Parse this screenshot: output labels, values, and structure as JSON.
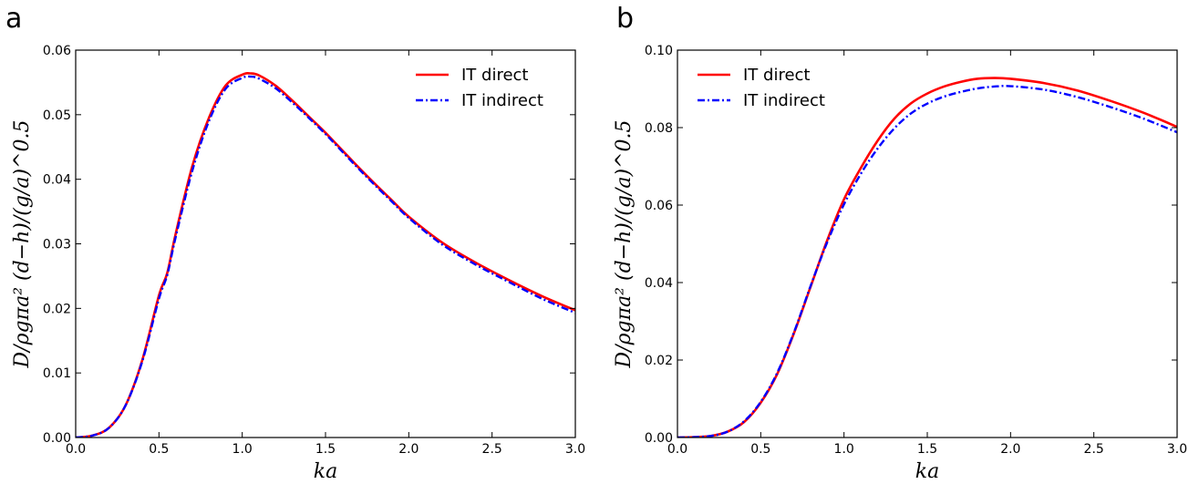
{
  "figure": {
    "panels": [
      "a",
      "b"
    ]
  },
  "chart_data": [
    {
      "panel": "a",
      "type": "line",
      "xlabel": "ka",
      "ylabel": "D/ρgπa² (d−h)/(g/a)^0.5",
      "xlim": [
        0.0,
        3.0
      ],
      "ylim": [
        0.0,
        0.06
      ],
      "xticks": [
        "0.0",
        "0.5",
        "1.0",
        "1.5",
        "2.0",
        "2.5",
        "3.0"
      ],
      "yticks": [
        "0.00",
        "0.01",
        "0.02",
        "0.03",
        "0.04",
        "0.05",
        "0.06"
      ],
      "xtick_values": [
        0.0,
        0.5,
        1.0,
        1.5,
        2.0,
        2.5,
        3.0
      ],
      "ytick_values": [
        0.0,
        0.01,
        0.02,
        0.03,
        0.04,
        0.05,
        0.06
      ],
      "grid": false,
      "legend": "top-right",
      "series": [
        {
          "name": "IT direct",
          "color": "#ff0000",
          "style": "solid",
          "x": [
            0.0,
            0.1,
            0.2,
            0.3,
            0.4,
            0.5,
            0.55,
            0.6,
            0.7,
            0.8,
            0.9,
            1.0,
            1.05,
            1.1,
            1.2,
            1.3,
            1.4,
            1.5,
            1.6,
            1.7,
            1.8,
            1.9,
            2.0,
            2.2,
            2.4,
            2.6,
            2.8,
            3.0
          ],
          "y": [
            0.0,
            0.0003,
            0.0015,
            0.005,
            0.012,
            0.022,
            0.0255,
            0.0315,
            0.042,
            0.0495,
            0.0545,
            0.0562,
            0.0564,
            0.0561,
            0.0545,
            0.0522,
            0.0497,
            0.0472,
            0.0445,
            0.0418,
            0.0392,
            0.0367,
            0.0342,
            0.0302,
            0.0271,
            0.0244,
            0.0219,
            0.0197
          ]
        },
        {
          "name": "IT indirect",
          "color": "#0000ff",
          "style": "dashdot",
          "x": [
            0.0,
            0.1,
            0.2,
            0.3,
            0.4,
            0.5,
            0.55,
            0.6,
            0.7,
            0.8,
            0.9,
            1.0,
            1.05,
            1.1,
            1.2,
            1.3,
            1.4,
            1.5,
            1.6,
            1.7,
            1.8,
            1.9,
            2.0,
            2.2,
            2.4,
            2.6,
            2.8,
            3.0
          ],
          "y": [
            0.0,
            0.0003,
            0.0015,
            0.005,
            0.0118,
            0.0215,
            0.0252,
            0.031,
            0.0413,
            0.049,
            0.054,
            0.0557,
            0.0559,
            0.0556,
            0.0541,
            0.0519,
            0.0495,
            0.047,
            0.0443,
            0.0416,
            0.039,
            0.0365,
            0.034,
            0.0299,
            0.0268,
            0.0241,
            0.0215,
            0.0193
          ]
        }
      ]
    },
    {
      "panel": "b",
      "type": "line",
      "xlabel": "ka",
      "ylabel": "D/ρgπa² (d−h)/(g/a)^0.5",
      "xlim": [
        0.0,
        3.0
      ],
      "ylim": [
        0.0,
        0.1
      ],
      "xticks": [
        "0.0",
        "0.5",
        "1.0",
        "1.5",
        "2.0",
        "2.5",
        "3.0"
      ],
      "yticks": [
        "0.00",
        "0.02",
        "0.04",
        "0.06",
        "0.08",
        "0.10"
      ],
      "xtick_values": [
        0.0,
        0.5,
        1.0,
        1.5,
        2.0,
        2.5,
        3.0
      ],
      "ytick_values": [
        0.0,
        0.02,
        0.04,
        0.06,
        0.08,
        0.1
      ],
      "grid": false,
      "legend": "top-left",
      "series": [
        {
          "name": "IT direct",
          "color": "#ff0000",
          "style": "solid",
          "x": [
            0.0,
            0.1,
            0.2,
            0.3,
            0.4,
            0.5,
            0.6,
            0.7,
            0.8,
            0.9,
            1.0,
            1.1,
            1.2,
            1.3,
            1.4,
            1.5,
            1.6,
            1.7,
            1.8,
            1.9,
            2.0,
            2.2,
            2.4,
            2.6,
            2.8,
            3.0
          ],
          "y": [
            0.0,
            0.0001,
            0.0004,
            0.0015,
            0.004,
            0.009,
            0.0165,
            0.027,
            0.039,
            0.051,
            0.0615,
            0.0695,
            0.0765,
            0.0822,
            0.0862,
            0.0888,
            0.0906,
            0.0918,
            0.0926,
            0.0928,
            0.0926,
            0.0915,
            0.0896,
            0.0869,
            0.0838,
            0.0802
          ]
        },
        {
          "name": "IT indirect",
          "color": "#0000ff",
          "style": "dashdot",
          "x": [
            0.0,
            0.1,
            0.2,
            0.3,
            0.4,
            0.5,
            0.6,
            0.7,
            0.8,
            0.9,
            1.0,
            1.1,
            1.2,
            1.3,
            1.4,
            1.5,
            1.6,
            1.7,
            1.8,
            1.9,
            2.0,
            2.2,
            2.4,
            2.6,
            2.8,
            3.0
          ],
          "y": [
            0.0,
            0.0001,
            0.0004,
            0.0015,
            0.0042,
            0.0092,
            0.0168,
            0.0272,
            0.0392,
            0.0505,
            0.0602,
            0.068,
            0.0745,
            0.0797,
            0.0836,
            0.0862,
            0.088,
            0.0892,
            0.0901,
            0.0906,
            0.0907,
            0.0898,
            0.0879,
            0.0853,
            0.0823,
            0.0788
          ]
        }
      ]
    }
  ]
}
